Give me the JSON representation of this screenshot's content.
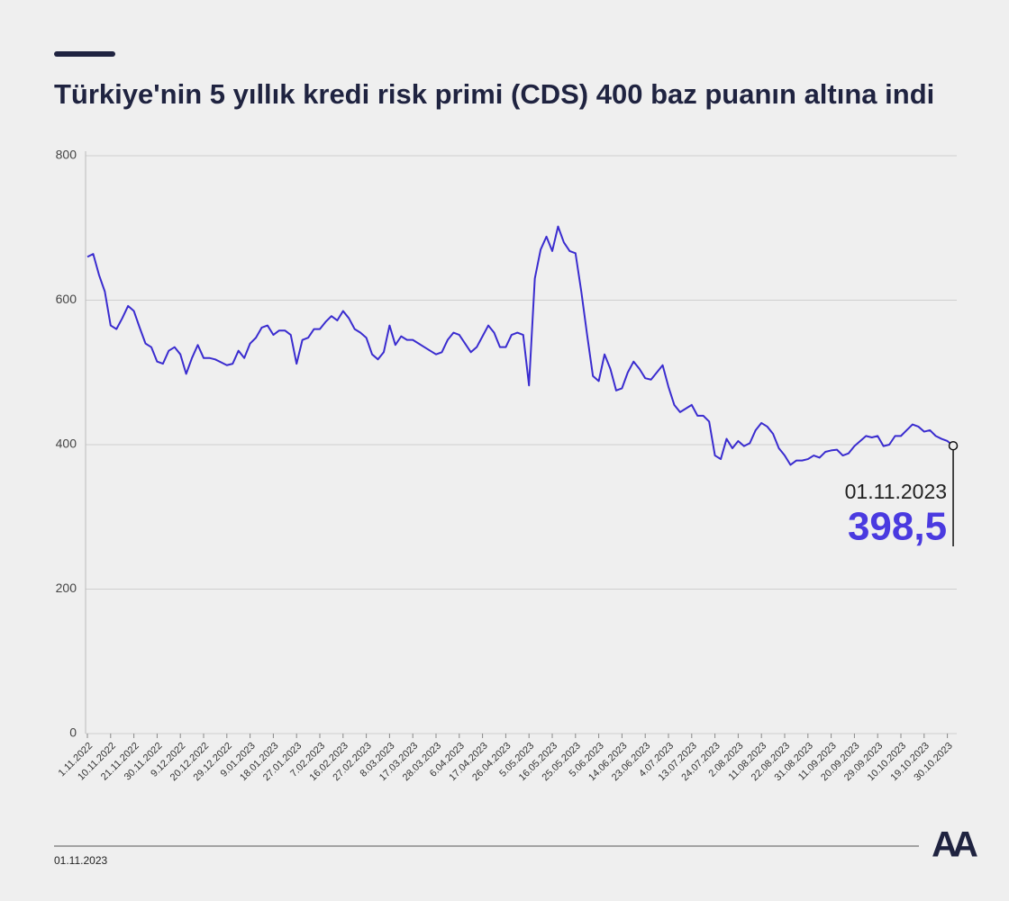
{
  "chart_data": {
    "type": "line",
    "title": "Türkiye'nin 5 yıllık kredi risk primi (CDS) 400 baz puanın altına indi",
    "categories": [
      "1.11.2022",
      null,
      null,
      null,
      "10.11.2022",
      null,
      null,
      null,
      "21.11.2022",
      null,
      null,
      null,
      "30.11.2022",
      null,
      null,
      null,
      "9.12.2022",
      null,
      null,
      null,
      "20.12.2022",
      null,
      null,
      null,
      "29.12.2022",
      null,
      null,
      null,
      "9.01.2023",
      null,
      null,
      null,
      "18.01.2023",
      null,
      null,
      null,
      "27.01.2023",
      null,
      null,
      null,
      "7.02.2023",
      null,
      null,
      null,
      "16.02.2023",
      null,
      null,
      null,
      "27.02.2023",
      null,
      null,
      null,
      "8.03.2023",
      null,
      null,
      null,
      "17.03.2023",
      null,
      null,
      null,
      "28.03.2023",
      null,
      null,
      null,
      "6.04.2023",
      null,
      null,
      null,
      "17.04.2023",
      null,
      null,
      null,
      "26.04.2023",
      null,
      null,
      null,
      "5.05.2023",
      null,
      null,
      null,
      "16.05.2023",
      null,
      null,
      null,
      "25.05.2023",
      null,
      null,
      null,
      "5.06.2023",
      null,
      null,
      null,
      "14.06.2023",
      null,
      null,
      null,
      "23.06.2023",
      null,
      null,
      null,
      "4.07.2023",
      null,
      null,
      null,
      "13.07.2023",
      null,
      null,
      null,
      "24.07.2023",
      null,
      null,
      null,
      "2.08.2023",
      null,
      null,
      null,
      "11.08.2023",
      null,
      null,
      null,
      "22.08.2023",
      null,
      null,
      null,
      "31.08.2023",
      null,
      null,
      null,
      "11.09.2023",
      null,
      null,
      null,
      "20.09.2023",
      null,
      null,
      null,
      "29.09.2023",
      null,
      null,
      null,
      "10.10.2023",
      null,
      null,
      null,
      "19.10.2023",
      null,
      null,
      null,
      "30.10.2023",
      null
    ],
    "series": [
      {
        "name": "CDS",
        "color": "#3a2ccf",
        "values": [
          660,
          664,
          635,
          612,
          565,
          560,
          575,
          592,
          585,
          562,
          540,
          535,
          515,
          512,
          530,
          535,
          525,
          498,
          520,
          538,
          520,
          520,
          518,
          514,
          510,
          512,
          530,
          520,
          540,
          548,
          562,
          565,
          552,
          558,
          558,
          552,
          512,
          545,
          548,
          560,
          560,
          570,
          578,
          572,
          585,
          575,
          560,
          555,
          548,
          525,
          518,
          528,
          565,
          538,
          550,
          545,
          545,
          540,
          535,
          530,
          525,
          528,
          545,
          555,
          552,
          540,
          528,
          535,
          550,
          565,
          555,
          535,
          535,
          552,
          555,
          552,
          482,
          630,
          670,
          688,
          668,
          702,
          680,
          668,
          665,
          612,
          552,
          495,
          488,
          525,
          505,
          475,
          478,
          500,
          515,
          505,
          492,
          490,
          500,
          510,
          480,
          455,
          445,
          450,
          455,
          440,
          440,
          432,
          385,
          380,
          408,
          395,
          405,
          398,
          402,
          420,
          430,
          425,
          415,
          395,
          385,
          372,
          378,
          378,
          380,
          385,
          382,
          390,
          392,
          393,
          385,
          388,
          398,
          405,
          412,
          410,
          412,
          398,
          400,
          412,
          412,
          420,
          428,
          425,
          418,
          420,
          412,
          408,
          405,
          398.5
        ]
      }
    ],
    "ylim": [
      0,
      800
    ],
    "yticks": [
      0,
      200,
      400,
      600,
      800
    ],
    "grid": true,
    "annotation": {
      "date": "01.11.2023",
      "value_label": "398,5"
    }
  },
  "footer": {
    "date": "01.11.2023"
  },
  "logo": "AA"
}
